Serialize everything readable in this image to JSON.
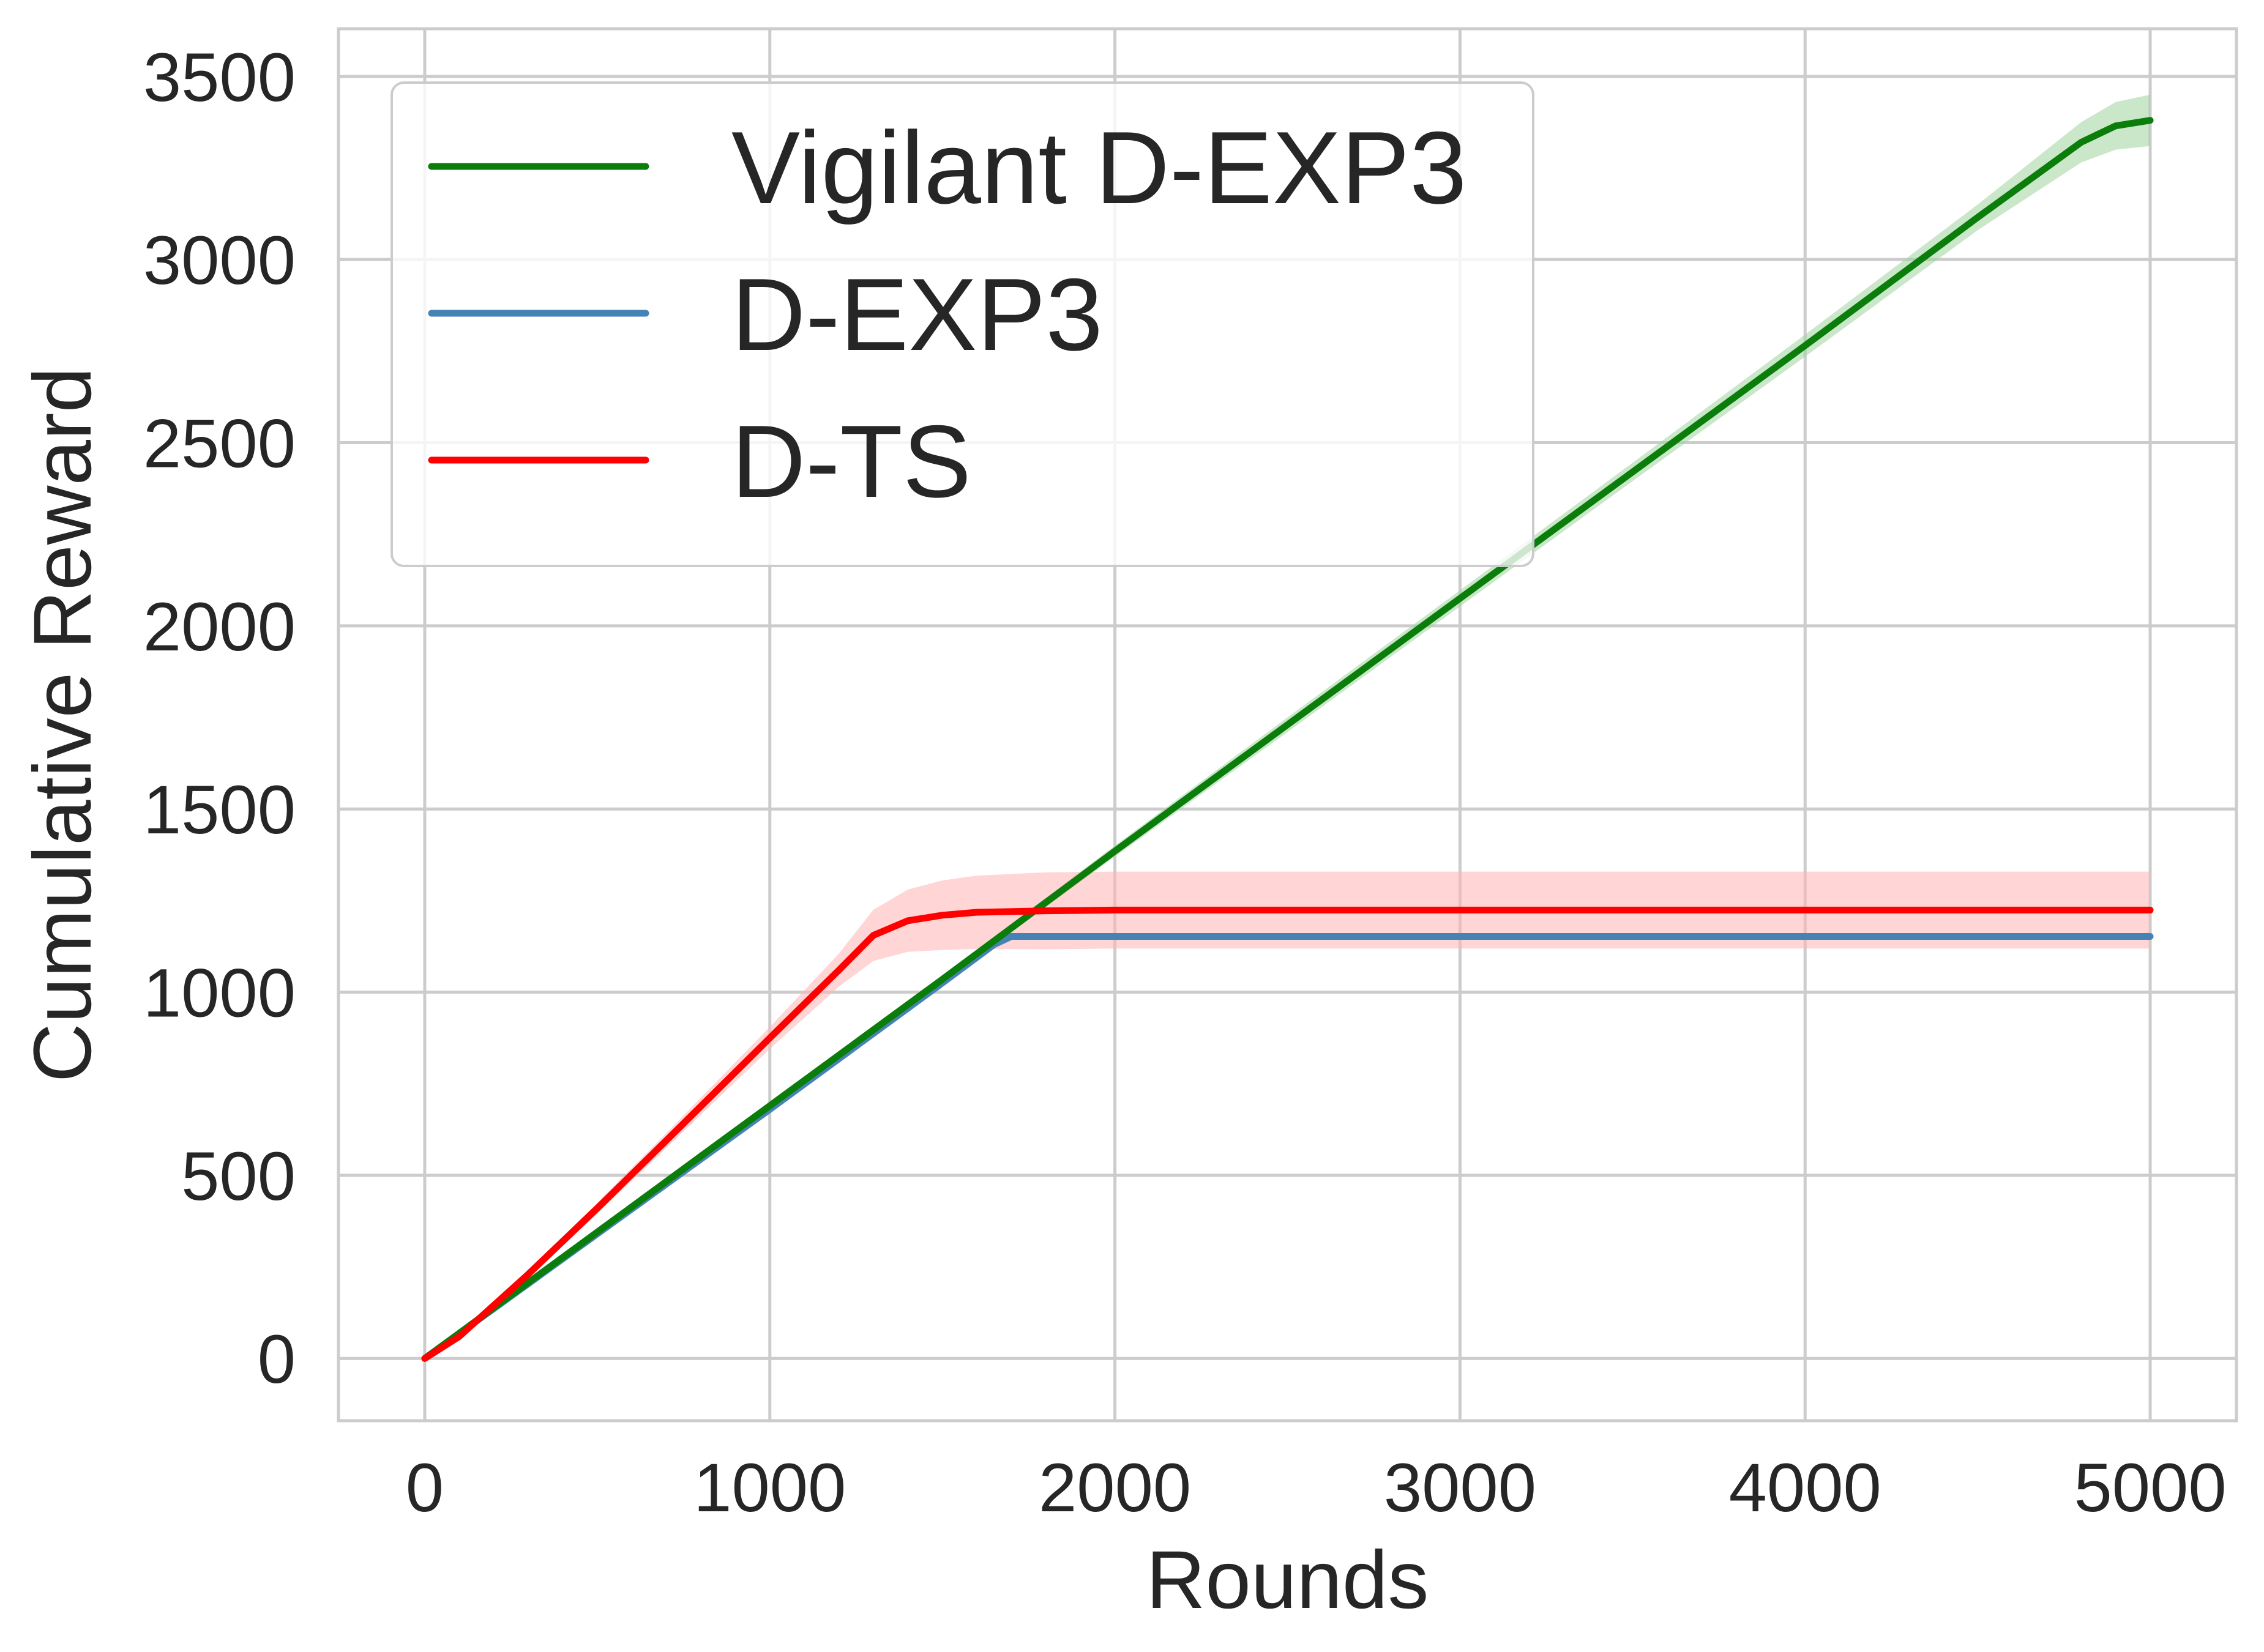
{
  "chart_data": {
    "type": "line",
    "xlabel": "Rounds",
    "ylabel": "Cumulative Reward",
    "xlim": [
      -250,
      5250
    ],
    "ylim": [
      -170,
      3630
    ],
    "xticks": [
      0,
      1000,
      2000,
      3000,
      4000,
      5000
    ],
    "yticks": [
      0,
      500,
      1000,
      1500,
      2000,
      2500,
      3000,
      3500
    ],
    "grid": true,
    "legend_position": "top-left",
    "series": [
      {
        "name": "Vigilant D-EXP3",
        "color": "#0a7d0a",
        "band_color": "#9fd49f",
        "x": [
          0,
          500,
          1000,
          1500,
          1700,
          2000,
          2500,
          3000,
          3500,
          4000,
          4500,
          4800,
          4900,
          5000
        ],
        "y": [
          0,
          345,
          690,
          1035,
          1175,
          1385,
          1730,
          2075,
          2420,
          2765,
          3115,
          3320,
          3365,
          3380
        ],
        "band": [
          0,
          5,
          8,
          10,
          12,
          15,
          20,
          22,
          25,
          30,
          35,
          55,
          65,
          70
        ]
      },
      {
        "name": "D-EXP3",
        "color": "#4682b4",
        "band_color": "#9dc1de",
        "x": [
          0,
          500,
          1000,
          1500,
          1650,
          1700,
          2000,
          3000,
          4000,
          5000
        ],
        "y": [
          0,
          340,
          680,
          1025,
          1130,
          1152,
          1152,
          1152,
          1152,
          1152
        ],
        "band": [
          0,
          4,
          6,
          8,
          8,
          8,
          8,
          8,
          8,
          8
        ]
      },
      {
        "name": "D-TS",
        "color": "#ff0000",
        "band_color": "#ffb3b3",
        "x": [
          0,
          100,
          300,
          500,
          700,
          1000,
          1200,
          1300,
          1400,
          1500,
          1600,
          1800,
          2000,
          3000,
          4000,
          5000
        ],
        "y": [
          0,
          60,
          230,
          410,
          595,
          875,
          1060,
          1155,
          1195,
          1210,
          1218,
          1222,
          1224,
          1224,
          1224,
          1224
        ],
        "band": [
          0,
          3,
          10,
          15,
          20,
          30,
          45,
          70,
          85,
          95,
          100,
          105,
          105,
          105,
          105,
          105
        ]
      }
    ]
  }
}
